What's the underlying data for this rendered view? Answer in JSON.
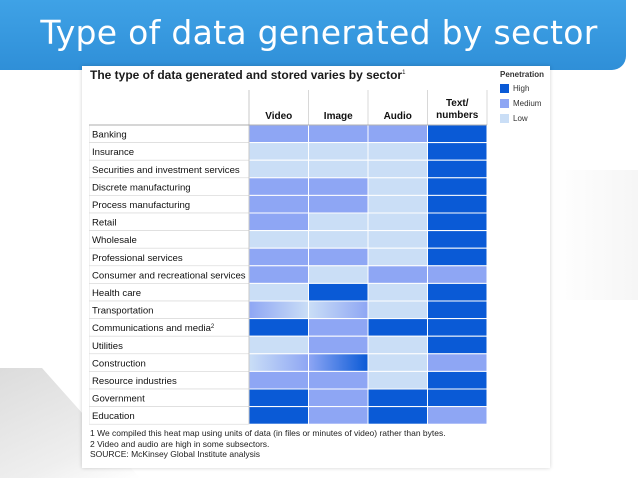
{
  "slide": {
    "title": "Type of data generated by sector"
  },
  "chart_data": {
    "type": "heatmap",
    "title": "The type of data generated and stored varies by sector",
    "title_footnote": "1",
    "columns": [
      "Video",
      "Image",
      "Audio",
      "Text/ numbers"
    ],
    "rows": [
      {
        "label": "Banking",
        "footnote": "",
        "values": [
          "Medium",
          "Medium",
          "Medium",
          "High"
        ]
      },
      {
        "label": "Insurance",
        "footnote": "",
        "values": [
          "Low",
          "Low",
          "Low",
          "High"
        ]
      },
      {
        "label": "Securities and investment services",
        "footnote": "",
        "values": [
          "Low",
          "Low",
          "Low",
          "High"
        ]
      },
      {
        "label": "Discrete manufacturing",
        "footnote": "",
        "values": [
          "Medium",
          "Medium",
          "Low",
          "High"
        ]
      },
      {
        "label": "Process manufacturing",
        "footnote": "",
        "values": [
          "Medium",
          "Medium",
          "Low",
          "High"
        ]
      },
      {
        "label": "Retail",
        "footnote": "",
        "values": [
          "Medium",
          "Low",
          "Low",
          "High"
        ]
      },
      {
        "label": "Wholesale",
        "footnote": "",
        "values": [
          "Low",
          "Low",
          "Low",
          "High"
        ]
      },
      {
        "label": "Professional services",
        "footnote": "",
        "values": [
          "Medium",
          "Medium",
          "Low",
          "High"
        ]
      },
      {
        "label": "Consumer and recreational services",
        "footnote": "",
        "values": [
          "Medium",
          "Low",
          "Medium",
          "Medium"
        ]
      },
      {
        "label": "Health care",
        "footnote": "",
        "values": [
          "Low",
          "High",
          "Low",
          "High"
        ]
      },
      {
        "label": "Transportation",
        "footnote": "",
        "values": [
          "Medium-Low",
          "Low-Medium",
          "Low",
          "High"
        ]
      },
      {
        "label": "Communications and media",
        "footnote": "2",
        "values": [
          "High",
          "Medium",
          "High",
          "High"
        ]
      },
      {
        "label": "Utilities",
        "footnote": "",
        "values": [
          "Low",
          "Medium",
          "Low",
          "High"
        ]
      },
      {
        "label": "Construction",
        "footnote": "",
        "values": [
          "Low-Medium",
          "Medium-High",
          "Low",
          "Medium"
        ]
      },
      {
        "label": "Resource industries",
        "footnote": "",
        "values": [
          "Medium",
          "Medium",
          "Low",
          "High"
        ]
      },
      {
        "label": "Government",
        "footnote": "",
        "values": [
          "High",
          "Medium",
          "High",
          "High"
        ]
      },
      {
        "label": "Education",
        "footnote": "",
        "values": [
          "High",
          "Medium",
          "High",
          "Medium"
        ]
      }
    ],
    "legend": {
      "title": "Penetration",
      "position": "right",
      "levels": [
        {
          "label": "High",
          "color": "#0a5ad6"
        },
        {
          "label": "Medium",
          "color": "#8ea6f4"
        },
        {
          "label": "Low",
          "color": "#cadef6"
        }
      ]
    }
  },
  "footnotes": [
    "1  We compiled this heat map using units of data (in files or minutes of video) rather than bytes.",
    "2  Video and audio are high in some subsectors.",
    "SOURCE: McKinsey Global Institute analysis"
  ]
}
